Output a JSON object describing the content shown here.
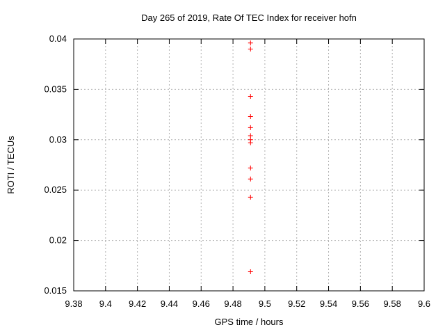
{
  "chart_data": {
    "type": "scatter",
    "title": "Day 265 of 2019, Rate Of TEC Index for receiver hofn",
    "xlabel": "GPS time / hours",
    "ylabel": "ROTI / TECUs",
    "xlim": [
      9.38,
      9.6
    ],
    "ylim": [
      0.015,
      0.04
    ],
    "xticks": [
      9.38,
      9.4,
      9.42,
      9.44,
      9.46,
      9.48,
      9.5,
      9.52,
      9.54,
      9.56,
      9.58,
      9.6
    ],
    "xtick_labels": [
      "9.38",
      "9.4",
      "9.42",
      "9.44",
      "9.46",
      "9.48",
      "9.5",
      "9.52",
      "9.54",
      "9.56",
      "9.58",
      "9.6"
    ],
    "yticks": [
      0.015,
      0.02,
      0.025,
      0.03,
      0.035,
      0.04
    ],
    "ytick_labels": [
      "0.015",
      "0.02",
      "0.025",
      "0.03",
      "0.035",
      "0.04"
    ],
    "grid": true,
    "legend_position": "none",
    "marker": "plus",
    "marker_color": "#ff0000",
    "grid_color": "#b0b0b0",
    "axis_color": "#000000",
    "series": [
      {
        "name": "ROTI",
        "x": [
          9.491,
          9.491,
          9.491,
          9.491,
          9.491,
          9.491,
          9.491,
          9.491,
          9.491,
          9.491,
          9.491,
          9.491
        ],
        "y": [
          0.0396,
          0.039,
          0.0343,
          0.0323,
          0.0312,
          0.0304,
          0.03,
          0.0297,
          0.0272,
          0.0261,
          0.0243,
          0.0169
        ]
      }
    ]
  }
}
